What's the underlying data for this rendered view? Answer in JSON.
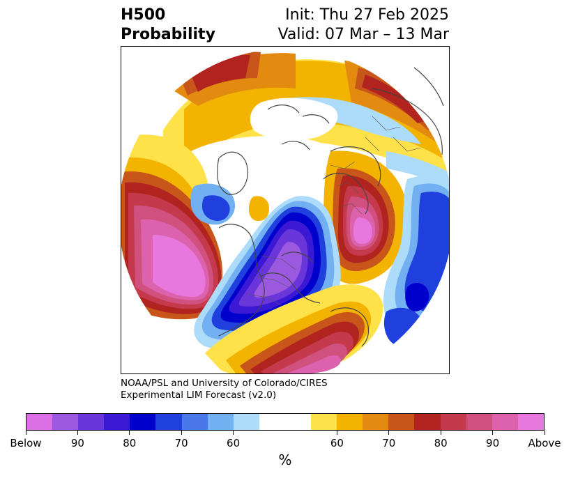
{
  "title": {
    "left_line1": "H500",
    "left_line2": "Probability",
    "right_line1": "Init: Thu 27 Feb 2025",
    "right_line2": "Valid: 07 Mar – 13 Mar"
  },
  "credit": {
    "line1": "NOAA/PSL and University of Colorado/CIRES",
    "line2": "Experimental LIM Forecast (v2.0)"
  },
  "colorbar": {
    "colors": [
      "#db70e6",
      "#9b59e0",
      "#6a36d9",
      "#3a18d4",
      "#0000cc",
      "#2040dd",
      "#4a78e8",
      "#72b0f2",
      "#addcfb",
      "#ffffff",
      "#ffffff",
      "#ffe14a",
      "#f2b400",
      "#e38a10",
      "#c8561a",
      "#b1231f",
      "#c43a4c",
      "#d0507e",
      "#dd62ae",
      "#e878dd"
    ],
    "tick_labels": [
      "Below",
      "90",
      "80",
      "70",
      "60",
      "60",
      "70",
      "80",
      "90",
      "Above"
    ],
    "unit": "%"
  },
  "map": {
    "projection": "north polar stereographic",
    "below_colors": {
      "b60": "#addcfb",
      "b70": "#72b0f2",
      "b80": "#2040dd",
      "b90": "#3a18d4",
      "bmax": "#9b59e0"
    },
    "above_colors": {
      "a55": "#ffe14a",
      "a60": "#f2b400",
      "a65": "#e38a10",
      "a70": "#c8561a",
      "a75": "#b1231f",
      "a80": "#c43a4c",
      "a85": "#d0507e",
      "a90": "#dd62ae",
      "a95": "#e878dd"
    }
  }
}
